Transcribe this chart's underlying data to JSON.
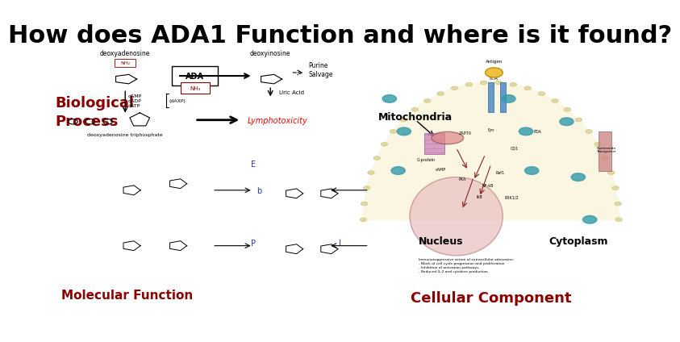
{
  "title": "How does ADA1 Function and where is it found?",
  "title_fontsize": 22,
  "title_fontweight": "bold",
  "title_color": "#000000",
  "bg_color": "#ffffff",
  "label_biological_process": "Biological\nProcess",
  "label_molecular_function": "Molecular Function",
  "label_cellular_component": "Cellular Component",
  "label_mitochondria": "Mitochondria",
  "label_nucleus": "Nucleus",
  "label_cytoplasm": "Cytoplasm",
  "label_color_dark_red": "#8B0000",
  "label_color_black": "#000000"
}
